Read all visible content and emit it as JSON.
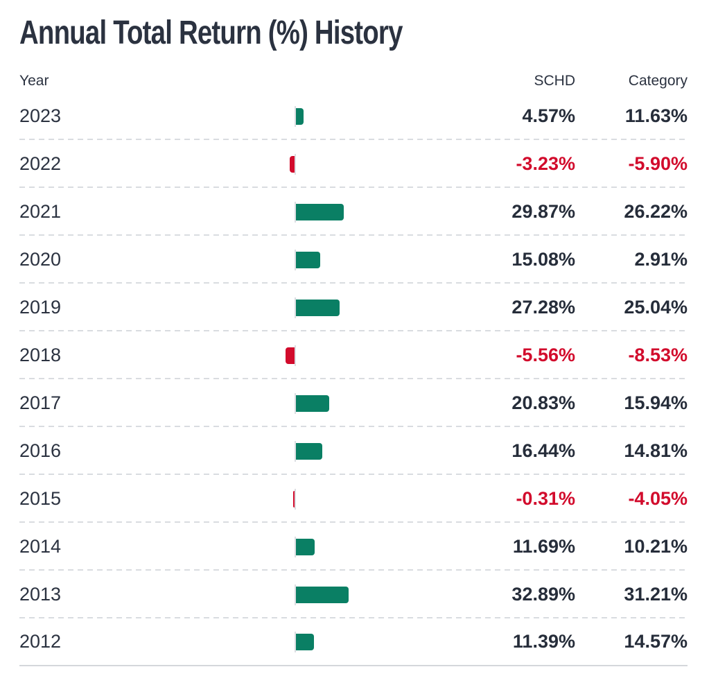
{
  "title": "Annual Total Return (%) History",
  "columns": {
    "year": "Year",
    "schd": "SCHD",
    "category": "Category"
  },
  "colors": {
    "positive_bar": "#0a7f64",
    "negative_bar": "#d20b2c",
    "negative_text": "#d20b2c",
    "text": "#2b3240",
    "separator": "#d9dce0",
    "baseline": "#dcdee2"
  },
  "rows": [
    {
      "year": "2023",
      "schd": "4.57%",
      "category": "11.63%"
    },
    {
      "year": "2022",
      "schd": "-3.23%",
      "category": "-5.90%"
    },
    {
      "year": "2021",
      "schd": "29.87%",
      "category": "26.22%"
    },
    {
      "year": "2020",
      "schd": "15.08%",
      "category": "2.91%"
    },
    {
      "year": "2019",
      "schd": "27.28%",
      "category": "25.04%"
    },
    {
      "year": "2018",
      "schd": "-5.56%",
      "category": "-8.53%"
    },
    {
      "year": "2017",
      "schd": "20.83%",
      "category": "15.94%"
    },
    {
      "year": "2016",
      "schd": "16.44%",
      "category": "14.81%"
    },
    {
      "year": "2015",
      "schd": "-0.31%",
      "category": "-4.05%"
    },
    {
      "year": "2014",
      "schd": "11.69%",
      "category": "10.21%"
    },
    {
      "year": "2013",
      "schd": "32.89%",
      "category": "31.21%"
    },
    {
      "year": "2012",
      "schd": "11.39%",
      "category": "14.57%"
    }
  ],
  "chart_data": {
    "type": "bar",
    "orientation": "horizontal",
    "title": "Annual Total Return (%) History",
    "categories": [
      "2023",
      "2022",
      "2021",
      "2020",
      "2019",
      "2018",
      "2017",
      "2016",
      "2015",
      "2014",
      "2013",
      "2012"
    ],
    "series": [
      {
        "name": "SCHD",
        "values": [
          4.57,
          -3.23,
          29.87,
          15.08,
          27.28,
          -5.56,
          20.83,
          16.44,
          -0.31,
          11.69,
          32.89,
          11.39
        ]
      },
      {
        "name": "Category",
        "values": [
          11.63,
          -5.9,
          26.22,
          2.91,
          25.04,
          -8.53,
          15.94,
          14.81,
          -4.05,
          10.21,
          31.21,
          14.57
        ]
      }
    ],
    "bars_depict": "SCHD",
    "positive_color": "#0a7f64",
    "negative_color": "#d20b2c",
    "grid": false,
    "legend_position": "none"
  }
}
